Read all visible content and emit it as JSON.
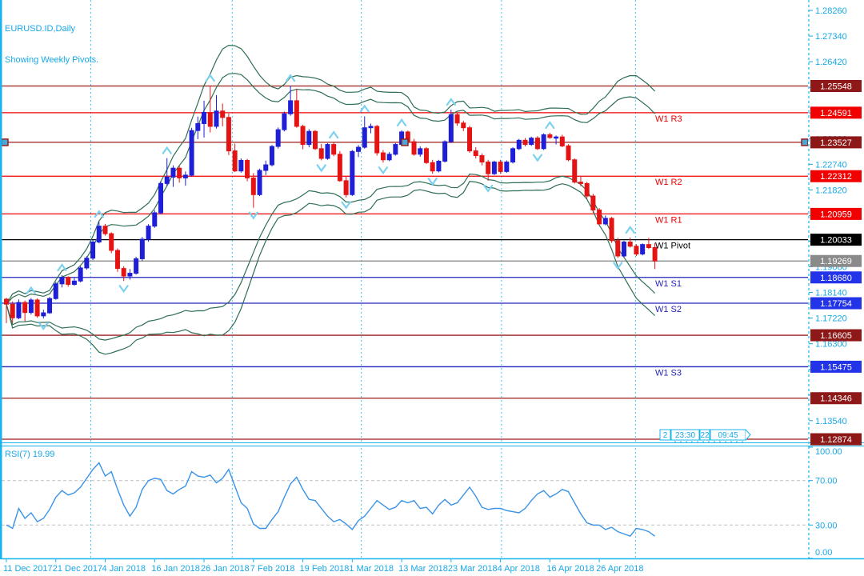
{
  "title": {
    "line1": "EURUSD.ID,Daily",
    "line2": "Showing Weekly Pivots."
  },
  "rsi_label": "RSI(7) 19.99",
  "time_boxes": {
    "items": [
      "2",
      "23:30",
      "22",
      "09:45"
    ]
  },
  "colors": {
    "background": "#ffffff",
    "axis_text": "#18a8e6",
    "border_cyan": "#18b4ee",
    "separator_dash": "#41c3f0",
    "bull_candle": "#1f1fd8",
    "bear_candle": "#e41414",
    "envelope": "#2e6e54",
    "fractal_arrow": "#7cd1f0",
    "level_red": "#f20000",
    "level_darkred": "#9b1c1c",
    "level_blue": "#2525be",
    "level_black": "#000000",
    "level_gray": "#808080",
    "badge_red": "#f20000",
    "badge_darkred": "#8e1717",
    "badge_blue": "#2233e8",
    "badge_black": "#000000",
    "badge_gray": "#8a8a8a",
    "badge_text": "#ffffff",
    "rsi_line": "#3a93e8",
    "rsi_level_dash": "#c0c0c0"
  },
  "chart_data": {
    "type": "candlestick",
    "symbol": "EURUSD.ID",
    "timeframe": "Daily",
    "price_axis": {
      "tick_start": 1.2826,
      "tick_step": 0.0092,
      "decimals": 5,
      "top_price": 1.28634,
      "bottom_price": 1.1276
    },
    "current_price": 1.19269,
    "pivot_levels": [
      {
        "price": 1.25548,
        "style": "darkred",
        "label": null
      },
      {
        "price": 1.24591,
        "style": "red",
        "label": "W1 R3"
      },
      {
        "price": 1.23527,
        "style": "darkred",
        "label": null,
        "selected": true
      },
      {
        "price": 1.22312,
        "style": "red",
        "label": "W1 R2"
      },
      {
        "price": 1.20959,
        "style": "red",
        "label": "W1 R1"
      },
      {
        "price": 1.20033,
        "style": "black",
        "label": "W1 Pivot"
      },
      {
        "price": 1.1868,
        "style": "blue",
        "label": "W1 S1"
      },
      {
        "price": 1.17754,
        "style": "blue",
        "label": "W1 S2"
      },
      {
        "price": 1.16605,
        "style": "darkred",
        "label": null
      },
      {
        "price": 1.15475,
        "style": "blue",
        "label": "W1 S3"
      },
      {
        "price": 1.14346,
        "style": "darkred",
        "label": null
      },
      {
        "price": 1.12874,
        "style": "darkred",
        "label": null
      }
    ],
    "x_dates": [
      {
        "bar": 0,
        "label": "11 Dec 2017"
      },
      {
        "bar": 8,
        "label": "21 Dec 2017"
      },
      {
        "bar": 16,
        "label": "4 Jan 2018"
      },
      {
        "bar": 24,
        "label": "16 Jan 2018"
      },
      {
        "bar": 32,
        "label": "26 Jan 2018"
      },
      {
        "bar": 40,
        "label": "7 Feb 2018"
      },
      {
        "bar": 48,
        "label": "19 Feb 2018"
      },
      {
        "bar": 56,
        "label": "1 Mar 2018"
      },
      {
        "bar": 64,
        "label": "13 Mar 2018"
      },
      {
        "bar": 72,
        "label": "23 Mar 2018"
      },
      {
        "bar": 80,
        "label": "4 Apr 2018"
      },
      {
        "bar": 88,
        "label": "16 Apr 2018"
      },
      {
        "bar": 96,
        "label": "26 Apr 2018"
      }
    ],
    "month_separators_bars": [
      13.6,
      36.5,
      57.4,
      80.1,
      101.8
    ],
    "envelopes": {
      "period": 20,
      "deviations": [
        2.0,
        2.5
      ]
    },
    "candles": [
      [
        1.179,
        1.1795,
        1.1704,
        1.1772
      ],
      [
        1.1772,
        1.1782,
        1.1705,
        1.1723
      ],
      [
        1.1723,
        1.1789,
        1.1718,
        1.1778
      ],
      [
        1.1778,
        1.1785,
        1.171,
        1.1742
      ],
      [
        1.1742,
        1.1794,
        1.1735,
        1.1787
      ],
      [
        1.1787,
        1.1793,
        1.1723,
        1.173
      ],
      [
        1.173,
        1.1752,
        1.1721,
        1.1741
      ],
      [
        1.1741,
        1.1798,
        1.1737,
        1.1792
      ],
      [
        1.1792,
        1.1852,
        1.1788,
        1.1845
      ],
      [
        1.1845,
        1.1876,
        1.1832,
        1.1868
      ],
      [
        1.1868,
        1.1872,
        1.1835,
        1.1843
      ],
      [
        1.1843,
        1.1866,
        1.1838,
        1.1855
      ],
      [
        1.1855,
        1.1908,
        1.185,
        1.1902
      ],
      [
        1.1902,
        1.1944,
        1.1896,
        1.1937
      ],
      [
        1.1937,
        1.2003,
        1.193,
        1.1995
      ],
      [
        1.1995,
        1.2068,
        1.199,
        1.2052
      ],
      [
        1.2052,
        1.206,
        1.2018,
        1.2025
      ],
      [
        1.2025,
        1.203,
        1.1955,
        1.1965
      ],
      [
        1.1965,
        1.1972,
        1.1888,
        1.19
      ],
      [
        1.19,
        1.1908,
        1.1855,
        1.1873
      ],
      [
        1.1873,
        1.1898,
        1.186,
        1.1883
      ],
      [
        1.1883,
        1.1942,
        1.1878,
        1.1935
      ],
      [
        1.1935,
        1.2013,
        1.1928,
        1.2005
      ],
      [
        1.2005,
        1.2059,
        1.1996,
        1.2052
      ],
      [
        1.2052,
        1.2109,
        1.2046,
        1.21
      ],
      [
        1.21,
        1.2213,
        1.2094,
        1.2205
      ],
      [
        1.2205,
        1.2296,
        1.2196,
        1.2228
      ],
      [
        1.2228,
        1.227,
        1.2193,
        1.226
      ],
      [
        1.226,
        1.2268,
        1.2208,
        1.2225
      ],
      [
        1.2225,
        1.2248,
        1.2197,
        1.2235
      ],
      [
        1.2235,
        1.2405,
        1.223,
        1.2395
      ],
      [
        1.2395,
        1.2445,
        1.2364,
        1.242
      ],
      [
        1.242,
        1.2502,
        1.237,
        1.246
      ],
      [
        1.246,
        1.2556,
        1.2388,
        1.241
      ],
      [
        1.241,
        1.2522,
        1.2402,
        1.2465
      ],
      [
        1.2465,
        1.2492,
        1.241,
        1.2442
      ],
      [
        1.2442,
        1.2456,
        1.2307,
        1.2322
      ],
      [
        1.2322,
        1.2348,
        1.2246,
        1.225
      ],
      [
        1.225,
        1.2295,
        1.2244,
        1.2288
      ],
      [
        1.2288,
        1.2293,
        1.2213,
        1.2225
      ],
      [
        1.2225,
        1.2242,
        1.2118,
        1.2165
      ],
      [
        1.2165,
        1.2258,
        1.216,
        1.2252
      ],
      [
        1.2252,
        1.2287,
        1.2235,
        1.2272
      ],
      [
        1.2272,
        1.2343,
        1.2266,
        1.2338
      ],
      [
        1.2338,
        1.2406,
        1.233,
        1.2398
      ],
      [
        1.2398,
        1.2463,
        1.2392,
        1.2455
      ],
      [
        1.2455,
        1.2556,
        1.2448,
        1.2502
      ],
      [
        1.2502,
        1.2545,
        1.2405,
        1.241
      ],
      [
        1.241,
        1.2416,
        1.2328,
        1.2345
      ],
      [
        1.2345,
        1.24,
        1.2335,
        1.2392
      ],
      [
        1.2392,
        1.2397,
        1.2325,
        1.233
      ],
      [
        1.233,
        1.2347,
        1.2288,
        1.2295
      ],
      [
        1.2295,
        1.235,
        1.229,
        1.2345
      ],
      [
        1.2345,
        1.2352,
        1.2303,
        1.231
      ],
      [
        1.231,
        1.2321,
        1.2211,
        1.2215
      ],
      [
        1.2215,
        1.223,
        1.2155,
        1.2165
      ],
      [
        1.2165,
        1.2325,
        1.216,
        1.232
      ],
      [
        1.232,
        1.2343,
        1.23,
        1.2335
      ],
      [
        1.2335,
        1.2446,
        1.233,
        1.2405
      ],
      [
        1.2405,
        1.242,
        1.2385,
        1.241
      ],
      [
        1.241,
        1.2415,
        1.2305,
        1.2315
      ],
      [
        1.2315,
        1.2325,
        1.228,
        1.229
      ],
      [
        1.229,
        1.2318,
        1.2285,
        1.231
      ],
      [
        1.231,
        1.235,
        1.2305,
        1.2345
      ],
      [
        1.2345,
        1.2396,
        1.234,
        1.239
      ],
      [
        1.239,
        1.2395,
        1.2348,
        1.2355
      ],
      [
        1.2355,
        1.2365,
        1.2305,
        1.231
      ],
      [
        1.231,
        1.2338,
        1.2301,
        1.233
      ],
      [
        1.233,
        1.2336,
        1.2275,
        1.228
      ],
      [
        1.228,
        1.229,
        1.224,
        1.225
      ],
      [
        1.225,
        1.229,
        1.2245,
        1.2285
      ],
      [
        1.2285,
        1.236,
        1.228,
        1.2355
      ],
      [
        1.2355,
        1.247,
        1.235,
        1.2452
      ],
      [
        1.2452,
        1.246,
        1.2412,
        1.2422
      ],
      [
        1.2422,
        1.243,
        1.2393,
        1.2405
      ],
      [
        1.2405,
        1.2412,
        1.2315,
        1.2322
      ],
      [
        1.2322,
        1.2335,
        1.2295,
        1.2305
      ],
      [
        1.2305,
        1.2313,
        1.227,
        1.2282
      ],
      [
        1.2282,
        1.229,
        1.2215,
        1.224
      ],
      [
        1.224,
        1.2287,
        1.2235,
        1.2282
      ],
      [
        1.2282,
        1.229,
        1.224,
        1.2248
      ],
      [
        1.2248,
        1.2288,
        1.2243,
        1.2282
      ],
      [
        1.2282,
        1.2335,
        1.2277,
        1.233
      ],
      [
        1.233,
        1.2365,
        1.2325,
        1.236
      ],
      [
        1.236,
        1.2368,
        1.2338,
        1.2345
      ],
      [
        1.2345,
        1.2373,
        1.234,
        1.2368
      ],
      [
        1.2368,
        1.2375,
        1.2325,
        1.233
      ],
      [
        1.233,
        1.2385,
        1.2325,
        1.238
      ],
      [
        1.238,
        1.2387,
        1.2365,
        1.237
      ],
      [
        1.237,
        1.2377,
        1.2345,
        1.2372
      ],
      [
        1.2372,
        1.238,
        1.2335,
        1.234
      ],
      [
        1.234,
        1.2346,
        1.2285,
        1.229
      ],
      [
        1.229,
        1.2295,
        1.2205,
        1.221
      ],
      [
        1.221,
        1.223,
        1.2195,
        1.2205
      ],
      [
        1.2205,
        1.2211,
        1.215,
        1.216
      ],
      [
        1.216,
        1.2168,
        1.21,
        1.211
      ],
      [
        1.211,
        1.2117,
        1.2055,
        1.206
      ],
      [
        1.206,
        1.209,
        1.2055,
        1.208
      ],
      [
        1.208,
        1.2085,
        1.1992,
        1.2
      ],
      [
        1.2,
        1.201,
        1.1938,
        1.1945
      ],
      [
        1.1945,
        1.2,
        1.194,
        1.1995
      ],
      [
        1.1995,
        1.2011,
        1.1975,
        1.198
      ],
      [
        1.198,
        1.1987,
        1.1945,
        1.1952
      ],
      [
        1.1952,
        1.199,
        1.1947,
        1.1986
      ],
      [
        1.1986,
        1.201,
        1.197,
        1.1975
      ],
      [
        1.1975,
        1.1992,
        1.1898,
        1.19269
      ]
    ],
    "rsi": {
      "period": 7,
      "last_value": 19.99,
      "range": [
        0,
        100
      ],
      "guide_levels": [
        30,
        70
      ],
      "axis_labels": [
        100,
        70,
        30,
        0
      ],
      "values": [
        30,
        27,
        45,
        36,
        41,
        33,
        36,
        44,
        55,
        61,
        57,
        59,
        64,
        72,
        80,
        86,
        74,
        78,
        62,
        48,
        38,
        46,
        62,
        70,
        72,
        71,
        61,
        58,
        62,
        65,
        78,
        74,
        73,
        75,
        68,
        72,
        80,
        65,
        50,
        45,
        31,
        27,
        27,
        35,
        42,
        55,
        67,
        73,
        62,
        53,
        52,
        45,
        38,
        33,
        35,
        31,
        26,
        34,
        38,
        45,
        52,
        48,
        44,
        46,
        52,
        50,
        52,
        45,
        46,
        40,
        48,
        53,
        48,
        50,
        57,
        64,
        56,
        46,
        44,
        45,
        45,
        43,
        42,
        41,
        45,
        52,
        58,
        61,
        55,
        58,
        62,
        60,
        50,
        40,
        32,
        30,
        30,
        26,
        28,
        24,
        22,
        20,
        27,
        26,
        24,
        20
      ]
    }
  }
}
